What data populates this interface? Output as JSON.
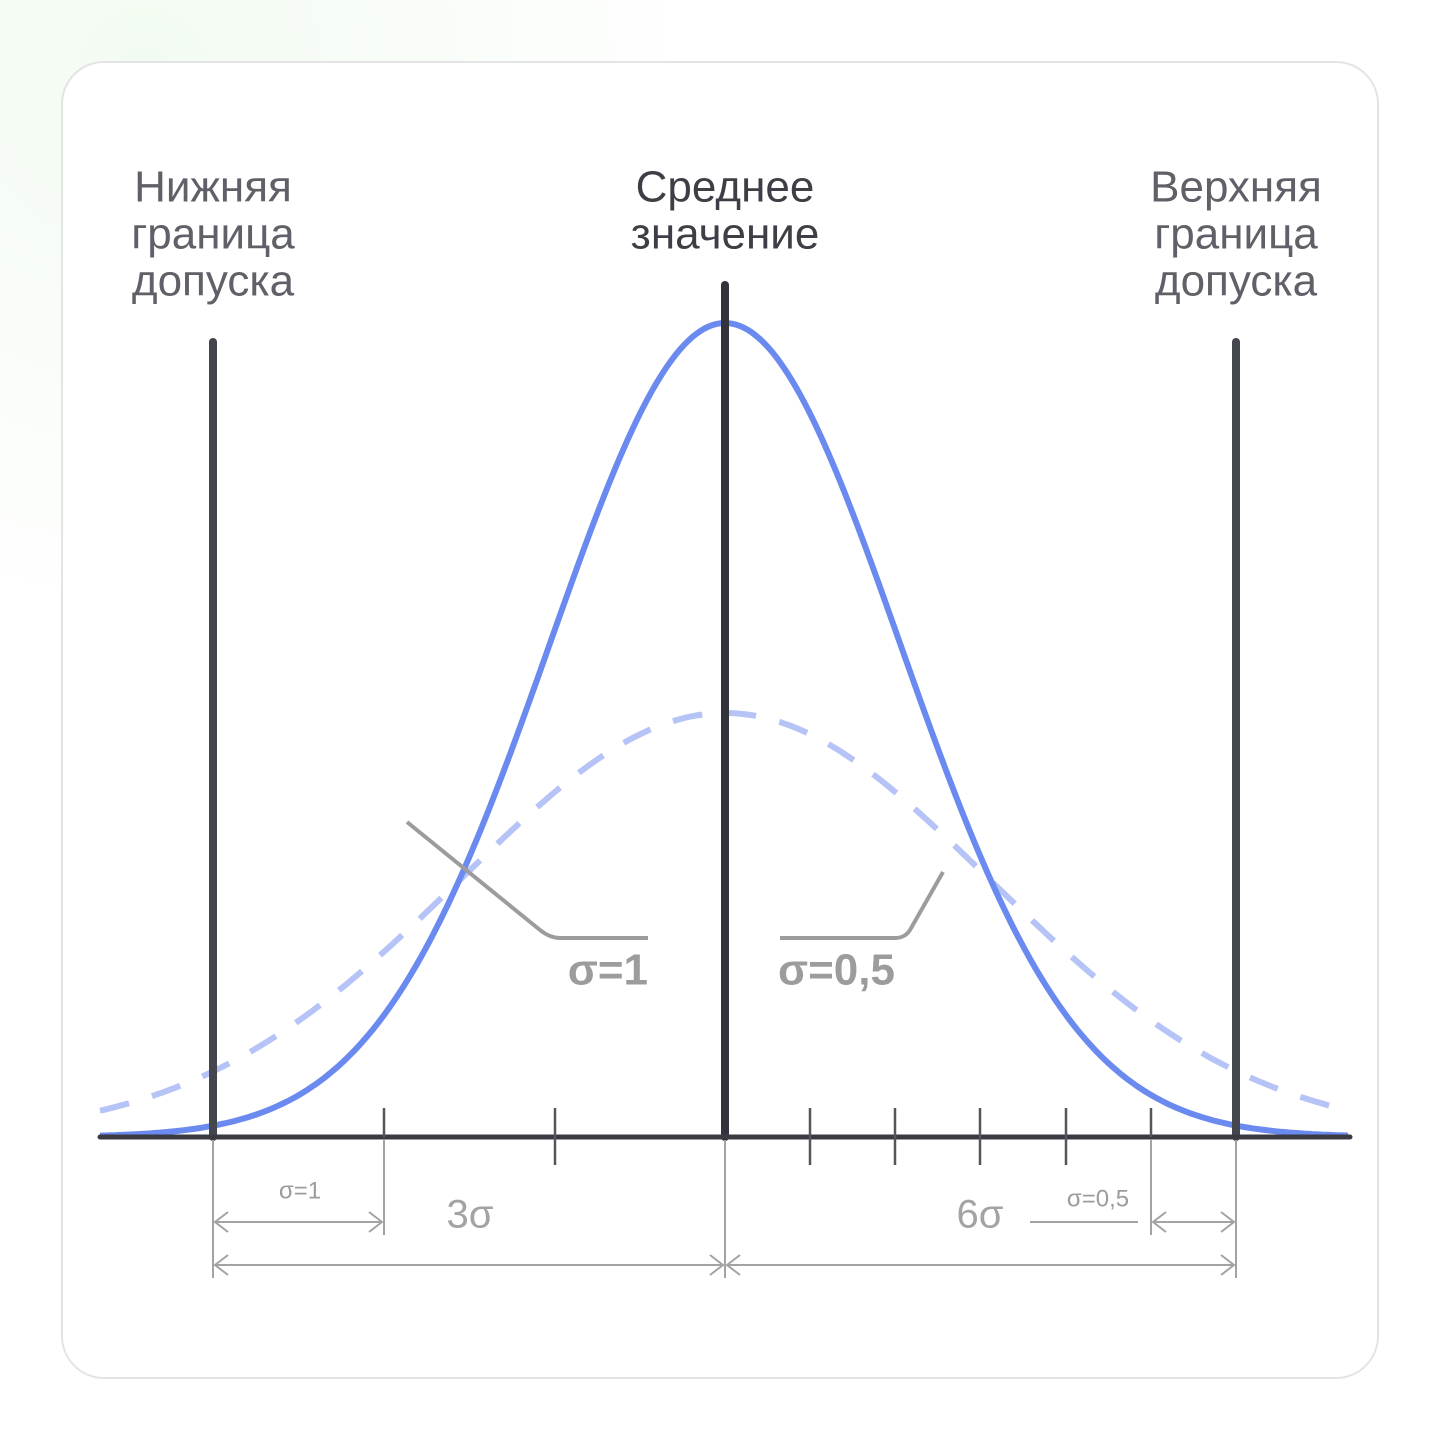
{
  "labels": {
    "lower_limit": [
      "Нижняя",
      "граница",
      "допуска"
    ],
    "mean": [
      "Среднее",
      "значение"
    ],
    "upper_limit": [
      "Верхняя",
      "граница",
      "допуска"
    ]
  },
  "callouts": {
    "wide": "σ=1",
    "narrow": "σ=0,5"
  },
  "dimensions": {
    "sigma_wide": "σ=1",
    "three_sigma": "3σ",
    "six_sigma": "6σ",
    "sigma_narrow": "σ=0,5"
  }
}
